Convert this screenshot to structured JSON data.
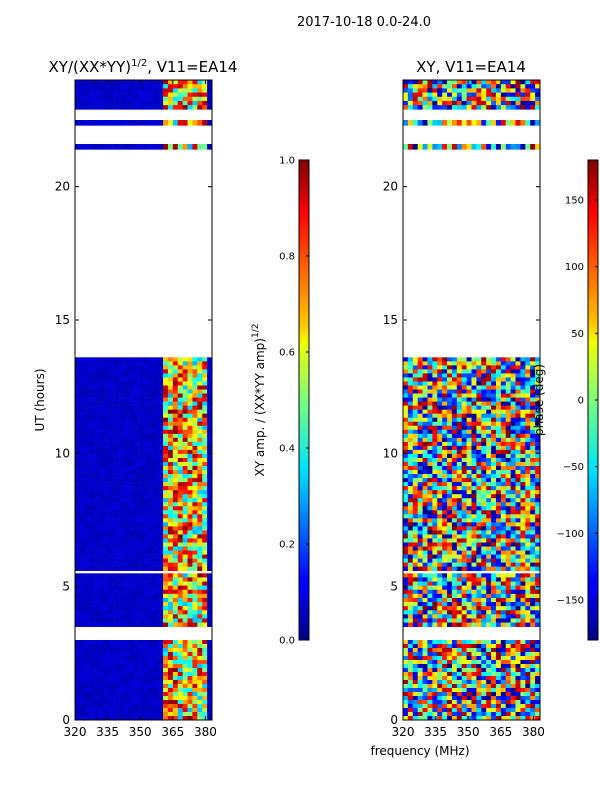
{
  "figure": {
    "suptitle": "2017-10-18 0.0-24.0",
    "shared_xlabel": "frequency (MHz)"
  },
  "chart_data": [
    {
      "type": "heatmap",
      "title_main": "XY/(XX*YY)",
      "title_exp": "1/2",
      "title_suffix": ", V11=EA14",
      "xlabel": "frequency (MHz)",
      "ylabel": "UT (hours)",
      "xlim": [
        320,
        383
      ],
      "ylim": [
        0,
        24
      ],
      "xticks": [
        320,
        335,
        350,
        365,
        380
      ],
      "yticks": [
        0,
        5,
        10,
        15,
        20
      ],
      "colorbar": {
        "label_main": "XY amp. / (XX*YY amp)",
        "label_exp": "1/2",
        "range": [
          0.0,
          1.0
        ],
        "ticks": [
          "0.0",
          "0.2",
          "0.4",
          "0.6",
          "0.8",
          "1.0"
        ],
        "tick_values": [
          0.0,
          0.2,
          0.4,
          0.6,
          0.8,
          1.0
        ]
      },
      "data_bands_ut": [
        [
          0,
          3.0
        ],
        [
          3.5,
          5.5
        ],
        [
          5.6,
          13.6
        ],
        [
          21.4,
          21.6
        ],
        [
          22.3,
          22.5
        ],
        [
          22.9,
          24
        ]
      ],
      "gap_bands_ut": [
        [
          3.0,
          3.5
        ],
        [
          13.6,
          21.4
        ],
        [
          21.6,
          22.3
        ],
        [
          22.5,
          22.9
        ]
      ],
      "features": {
        "background_level": 0.05,
        "rfi_frequency_band_mhz": [
          360,
          381
        ],
        "rfi_level_range": [
          0.3,
          1.0
        ]
      }
    },
    {
      "type": "heatmap",
      "title": "XY, V11=EA14",
      "xlabel": "frequency (MHz)",
      "ylabel": "",
      "xlim": [
        320,
        383
      ],
      "ylim": [
        0,
        24
      ],
      "xticks": [
        320,
        335,
        350,
        365,
        380
      ],
      "yticks": [
        0,
        5,
        10,
        15,
        20
      ],
      "colorbar": {
        "label": "phase (deg)",
        "range": [
          -180,
          180
        ],
        "ticks": [
          "150",
          "100",
          "50",
          "0",
          "−50",
          "−100",
          "−150"
        ],
        "tick_values": [
          150,
          100,
          50,
          0,
          -50,
          -100,
          -150
        ]
      },
      "data_bands_ut": [
        [
          0,
          3.0
        ],
        [
          3.5,
          5.5
        ],
        [
          5.6,
          13.6
        ],
        [
          21.4,
          21.6
        ],
        [
          22.3,
          22.5
        ],
        [
          22.9,
          24
        ]
      ],
      "gap_bands_ut": [
        [
          3.0,
          3.5
        ],
        [
          13.6,
          21.4
        ],
        [
          21.6,
          22.3
        ],
        [
          22.5,
          22.9
        ]
      ],
      "features": {
        "phase_range_deg": [
          -180,
          180
        ],
        "description_values": "noisy phase across full band"
      }
    }
  ]
}
